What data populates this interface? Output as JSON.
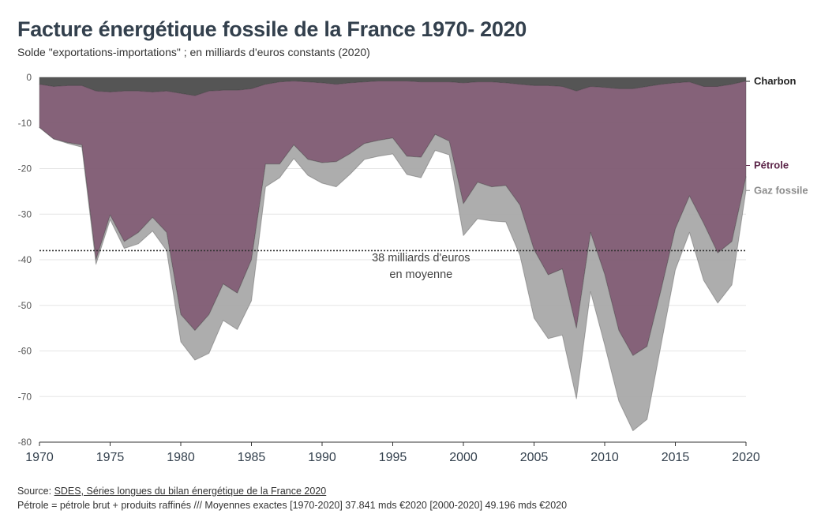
{
  "title": "Facture énergétique fossile de la France 1970- 2020",
  "subtitle": "Solde \"exportations-importations\" ; en milliards d'euros constants (2020)",
  "source_prefix": "Source: ",
  "source_link": "SDES, Séries longues du bilan énergétique de la France 2020",
  "note": "Pétrole = pétrole brut + produits raffinés /// Moyennes exactes [1970-2020] 37.841 mds €2020 [2000-2020] 49.196 mds €2020",
  "colors": {
    "charbon": "#555555",
    "petrole": "#7e5a72",
    "gaz": "#a9a9a9",
    "petrole_label": "#5a2347",
    "gaz_label": "#8c8c8c",
    "charbon_label": "#222222",
    "grid": "#e6e6e6",
    "text": "#33404d"
  },
  "chart_data": {
    "type": "area",
    "stacked": true,
    "x": [
      1970,
      1971,
      1972,
      1973,
      1974,
      1975,
      1976,
      1977,
      1978,
      1979,
      1980,
      1981,
      1982,
      1983,
      1984,
      1985,
      1986,
      1987,
      1988,
      1989,
      1990,
      1991,
      1992,
      1993,
      1994,
      1995,
      1996,
      1997,
      1998,
      1999,
      2000,
      2001,
      2002,
      2003,
      2004,
      2005,
      2006,
      2007,
      2008,
      2009,
      2010,
      2011,
      2012,
      2013,
      2014,
      2015,
      2016,
      2017,
      2018,
      2019,
      2020
    ],
    "series": [
      {
        "name": "Charbon",
        "values": [
          -1.5,
          -2.0,
          -1.8,
          -1.8,
          -3.0,
          -3.2,
          -3.0,
          -3.0,
          -3.2,
          -3.0,
          -3.5,
          -4.0,
          -3.0,
          -2.8,
          -2.8,
          -2.5,
          -1.5,
          -1.0,
          -0.8,
          -1.0,
          -1.2,
          -1.5,
          -1.2,
          -1.0,
          -0.8,
          -0.8,
          -0.8,
          -1.0,
          -1.0,
          -1.0,
          -1.2,
          -1.0,
          -1.0,
          -1.2,
          -1.5,
          -1.8,
          -1.8,
          -2.0,
          -3.0,
          -2.0,
          -2.2,
          -2.5,
          -2.5,
          -2.0,
          -1.5,
          -1.2,
          -1.0,
          -2.0,
          -2.0,
          -1.5,
          -0.8
        ]
      },
      {
        "name": "Pétrole",
        "values": [
          -9.5,
          -11.5,
          -12.5,
          -13.0,
          -37.0,
          -27.0,
          -33.0,
          -31.0,
          -27.5,
          -31.0,
          -48.5,
          -51.5,
          -49.0,
          -42.5,
          -44.5,
          -37.5,
          -17.5,
          -18.0,
          -14.0,
          -17.0,
          -17.5,
          -17.0,
          -15.5,
          -13.5,
          -13.0,
          -12.5,
          -16.5,
          -16.5,
          -11.5,
          -13.0,
          -26.5,
          -22.0,
          -23.0,
          -22.5,
          -26.5,
          -36.0,
          -41.5,
          -40.0,
          -52.0,
          -32.0,
          -41.0,
          -53.0,
          -58.5,
          -57.0,
          -45.0,
          -32.0,
          -25.0,
          -30.0,
          -36.5,
          -34.5,
          -21.0
        ]
      },
      {
        "name": "Gaz fossile",
        "values": [
          0,
          0,
          -0.2,
          -0.5,
          -1.0,
          -1.0,
          -1.5,
          -2.5,
          -3.0,
          -4.0,
          -6.0,
          -6.5,
          -8.5,
          -8.0,
          -8.0,
          -9.0,
          -5.0,
          -3.0,
          -3.0,
          -3.5,
          -4.5,
          -5.5,
          -4.5,
          -3.5,
          -3.5,
          -3.5,
          -4.0,
          -4.5,
          -3.5,
          -3.0,
          -7.0,
          -8.0,
          -7.5,
          -8.0,
          -11.0,
          -15.0,
          -14.0,
          -14.5,
          -15.5,
          -13.0,
          -15.5,
          -15.5,
          -16.5,
          -16.0,
          -12.0,
          -9.0,
          -8.0,
          -12.5,
          -11.0,
          -9.5,
          -3.0
        ]
      }
    ],
    "series_labels": [
      "Charbon",
      "Pétrole",
      "Gaz fossile"
    ],
    "ylim": [
      -80,
      0
    ],
    "yticks": [
      0,
      -10,
      -20,
      -30,
      -40,
      -50,
      -60,
      -70,
      -80
    ],
    "xlim": [
      1970,
      2020
    ],
    "xticks": [
      1970,
      1975,
      1980,
      1985,
      1990,
      1995,
      2000,
      2005,
      2010,
      2015,
      2020
    ],
    "grid": true,
    "reference_line": {
      "value": -38,
      "style": "dotted"
    },
    "annotation": {
      "line1": "38 milliards d'euros",
      "line2": "en moyenne",
      "x": 1997,
      "y": -41
    }
  }
}
